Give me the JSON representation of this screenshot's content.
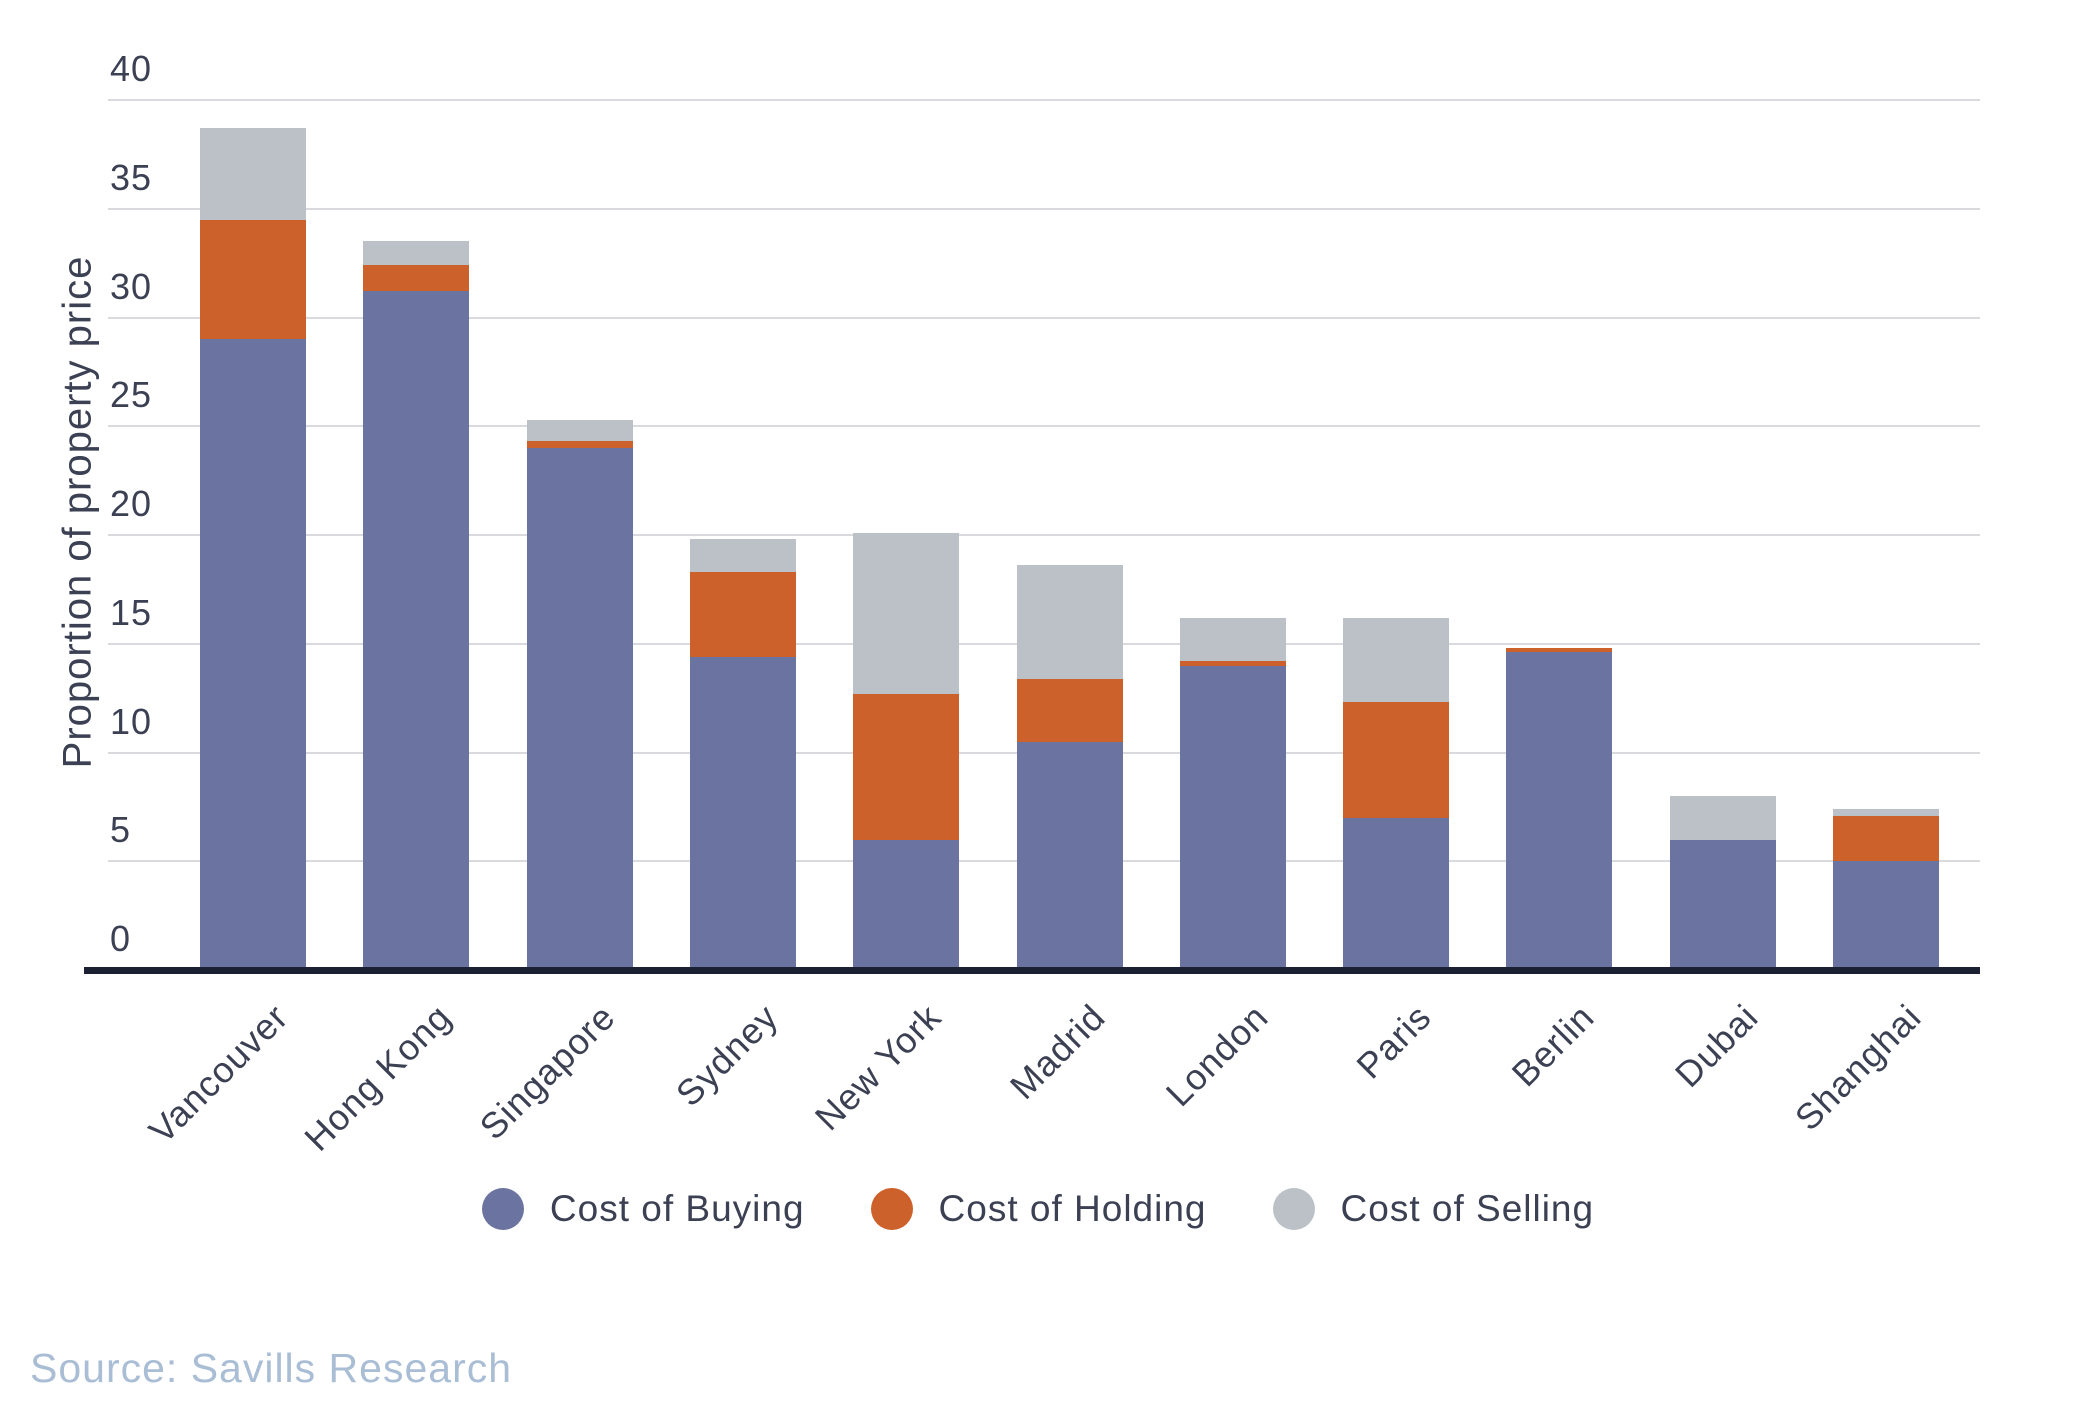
{
  "chart_data": {
    "type": "bar",
    "stacked": true,
    "title": "",
    "xlabel": "",
    "ylabel": "Proportion of property price",
    "ylim": [
      0,
      40
    ],
    "yticks": [
      0,
      5,
      10,
      15,
      20,
      25,
      30,
      35,
      40
    ],
    "grid": true,
    "legend_position": "bottom",
    "categories": [
      "Vancouver",
      "Hong Kong",
      "Singapore",
      "Sydney",
      "New York",
      "Madrid",
      "London",
      "Paris",
      "Berlin",
      "Dubai",
      "Shanghai"
    ],
    "series": [
      {
        "name": "Cost of Buying",
        "color": "#6b74a0",
        "values": [
          29.0,
          31.2,
          24.0,
          14.4,
          6.0,
          10.5,
          14.0,
          7.0,
          14.6,
          6.0,
          5.0
        ]
      },
      {
        "name": "Cost of Holding",
        "color": "#cc612c",
        "values": [
          5.5,
          1.2,
          0.3,
          3.9,
          6.7,
          2.9,
          0.2,
          5.3,
          0.2,
          0.0,
          2.1
        ]
      },
      {
        "name": "Cost of Selling",
        "color": "#bbc1c6",
        "values": [
          4.2,
          1.1,
          1.0,
          1.5,
          7.4,
          5.2,
          2.0,
          3.9,
          0.0,
          2.0,
          0.3
        ]
      }
    ]
  },
  "source": {
    "text": "Source: Savills Research"
  },
  "colors": {
    "background": "#ffffff",
    "gridline": "#d9dade",
    "baseline": "#1b2032",
    "axis_text": "#3b4053",
    "source_text": "#a9bdd4"
  }
}
